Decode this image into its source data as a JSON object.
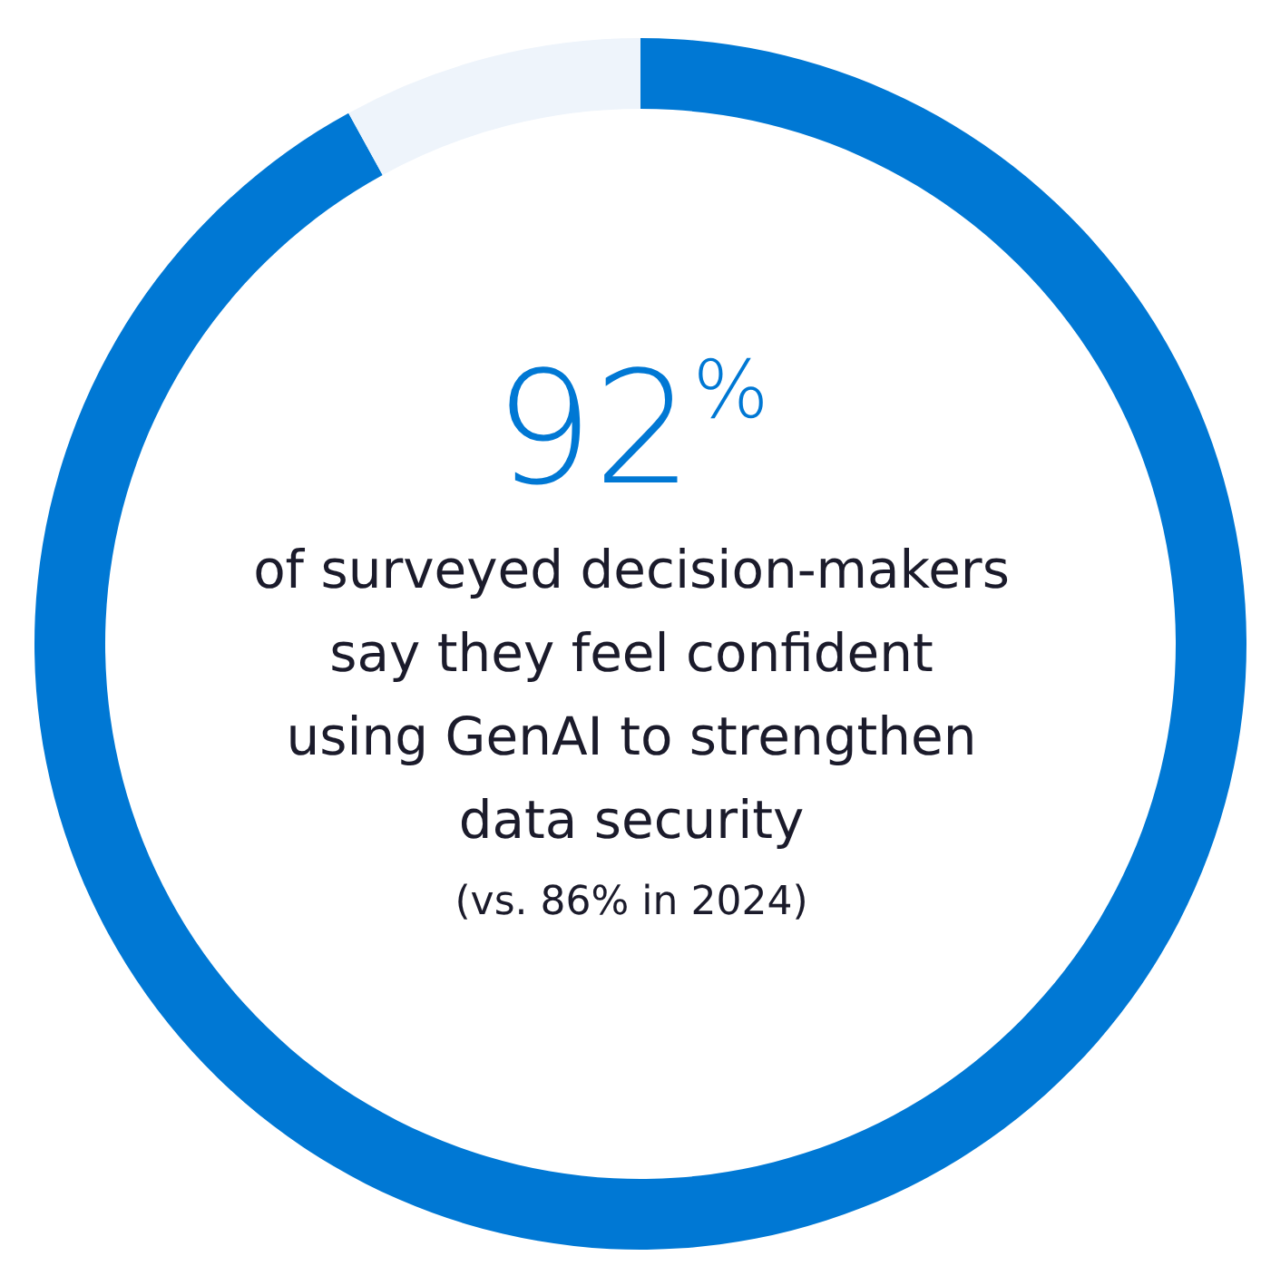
{
  "chart_data": {
    "type": "donut",
    "categories": [
      null,
      null
    ],
    "values": [
      92,
      8
    ],
    "colors": [
      "#0078d4",
      "#eef4fb"
    ],
    "value_labels": [
      "92%",
      null
    ],
    "annotations": [
      "of surveyed decision-makers",
      "say they feel confident",
      "using GenAI to strengthen",
      "data security",
      "(vs. 86% in 2024)"
    ]
  }
}
